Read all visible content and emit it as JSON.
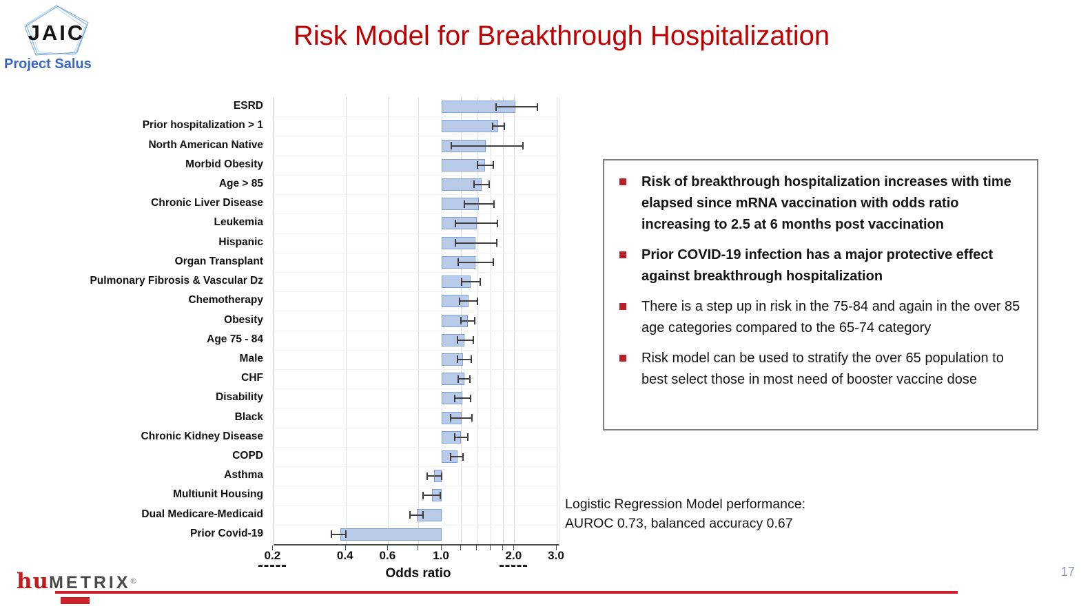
{
  "header": {
    "logo_text": "JAIC",
    "logo_subtitle": "Project Salus",
    "title": "Risk Model for Breakthrough Hospitalization"
  },
  "chart_data": {
    "type": "bar",
    "orientation": "horizontal",
    "title": "",
    "xlabel": "Odds ratio",
    "x_scale": "log",
    "x_range": [
      0.2,
      3.0
    ],
    "baseline": 1.0,
    "x_tick_labels": [
      0.2,
      0.4,
      0.6,
      1.0,
      2.0,
      3.0
    ],
    "tick_marks": [
      0.2,
      0.4,
      0.6,
      0.8,
      1.0,
      1.2,
      1.4,
      1.6,
      1.8,
      2.0,
      3.0
    ],
    "gridlines": [
      0.2,
      0.4,
      0.6,
      0.8,
      1.2,
      1.4,
      1.6,
      1.8,
      2.0,
      3.0
    ],
    "crop_marks_at": [
      0.2,
      2.0
    ],
    "grid": true,
    "legend": "none",
    "categories": [
      "ESRD",
      "Prior hospitalization > 1",
      "North American Native",
      "Morbid Obesity",
      "Age > 85",
      "Chronic Liver Disease",
      "Leukemia",
      "Hispanic",
      "Organ Transplant",
      "Pulmonary Fibrosis & Vascular Dz",
      "Chemotherapy",
      "Obesity",
      "Age 75 - 84",
      "Male",
      "CHF",
      "Disability",
      "Black",
      "Chronic Kidney Disease",
      "COPD",
      "Asthma",
      "Multiunit Housing",
      "Dual Medicare-Medicaid",
      "Prior Covid-19"
    ],
    "values": [
      2.02,
      1.71,
      1.52,
      1.51,
      1.46,
      1.43,
      1.4,
      1.38,
      1.38,
      1.32,
      1.29,
      1.28,
      1.24,
      1.23,
      1.24,
      1.22,
      1.21,
      1.2,
      1.16,
      0.93,
      0.91,
      0.79,
      0.38
    ],
    "ci_low": [
      1.68,
      1.63,
      1.1,
      1.41,
      1.36,
      1.24,
      1.14,
      1.14,
      1.17,
      1.21,
      1.19,
      1.2,
      1.16,
      1.16,
      1.17,
      1.13,
      1.09,
      1.13,
      1.09,
      0.87,
      0.84,
      0.74,
      0.35
    ],
    "ci_high": [
      2.49,
      1.82,
      2.17,
      1.64,
      1.57,
      1.65,
      1.7,
      1.69,
      1.64,
      1.45,
      1.41,
      1.37,
      1.35,
      1.33,
      1.31,
      1.32,
      1.34,
      1.28,
      1.23,
      1.0,
      0.99,
      0.84,
      0.4
    ]
  },
  "callout_box": {
    "bullets": [
      {
        "bold": true,
        "text": "Risk of breakthrough hospitalization increases with time elapsed since mRNA vaccination with odds ratio increasing to 2.5 at 6 months post vaccination"
      },
      {
        "bold": true,
        "text": "Prior COVID-19 infection has a major protective effect against breakthrough hospitalization"
      },
      {
        "bold": false,
        "text": "There is a step up in risk in the 75-84 and again in the over 85 age categories compared to the 65-74 category"
      },
      {
        "bold": false,
        "text": "Risk model can be used to stratify the over 65 population to best select those in most need of booster vaccine dose"
      }
    ]
  },
  "model_performance": {
    "line1": "Logistic Regression Model performance:",
    "line2": "AUROC 0.73, balanced accuracy 0.67"
  },
  "footer": {
    "logo_hu": "hu",
    "logo_metrix": "METRIX",
    "logo_reg": "®",
    "page_number": "17"
  },
  "colors": {
    "title_red": "#C00000",
    "logo_blue": "#3A66C8",
    "bar_fill": "#B9CBE9",
    "bar_border": "#7D9ED6",
    "error_bar": "#3D3D3D",
    "box_border": "#7F7F7F",
    "bullet_red": "#B42025",
    "footer_red": "#CE2029",
    "page_number_gray": "#8A95A5"
  }
}
